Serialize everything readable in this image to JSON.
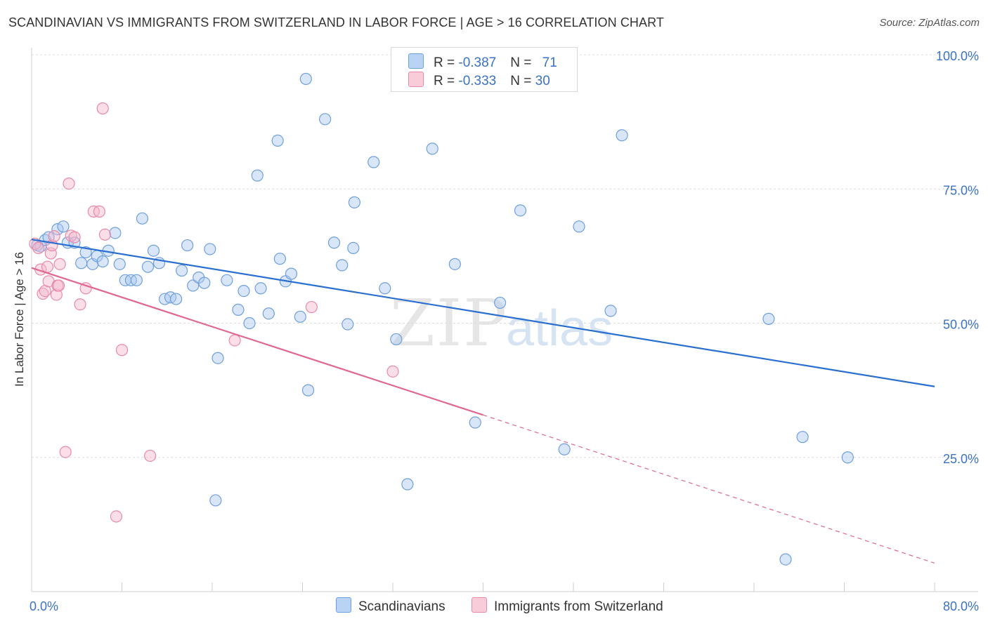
{
  "title": "SCANDINAVIAN VS IMMIGRANTS FROM SWITZERLAND IN LABOR FORCE | AGE > 16 CORRELATION CHART",
  "source": "Source: ZipAtlas.com",
  "watermark": "ZIPatlas",
  "colors": {
    "scandinavians": "#a8c8f0",
    "scandinavians_line": "#2a6fd0",
    "switzerland": "#f5b8cb",
    "switzerland_line": "#e06890",
    "axis_text": "#3a72c4"
  },
  "legend_top": {
    "rows": [
      {
        "r_label": "R = ",
        "r_value": "-0.387",
        "n_label": "N = ",
        "n_value": "71"
      },
      {
        "r_label": "R = ",
        "r_value": "-0.333",
        "n_label": "N = ",
        "n_value": "30"
      }
    ]
  },
  "legend_bottom": {
    "scandinavians": "Scandinavians",
    "switzerland": "Immigrants from Switzerland"
  },
  "chart_data": {
    "type": "scatter",
    "title": "SCANDINAVIAN VS IMMIGRANTS FROM SWITZERLAND IN LABOR FORCE | AGE > 16 CORRELATION CHART",
    "xlabel": "",
    "ylabel": "In Labor Force | Age > 16",
    "xlim": [
      0,
      80
    ],
    "ylim": [
      0,
      105
    ],
    "x_tick_labels": [
      "0.0%",
      "80.0%"
    ],
    "y_tick_labels": [
      "25.0%",
      "50.0%",
      "75.0%",
      "100.0%"
    ],
    "y_ticks": [
      25,
      50,
      75,
      100
    ],
    "grid": "horizontal dashed",
    "legend_position": "top-center",
    "series": [
      {
        "name": "Scandinavians",
        "points": [
          [
            0.5,
            64.5
          ],
          [
            0.8,
            64.3
          ],
          [
            1.2,
            65.5
          ],
          [
            1.5,
            66.0
          ],
          [
            2.3,
            67.5
          ],
          [
            2.8,
            68.0
          ],
          [
            3.2,
            65.0
          ],
          [
            3.8,
            65.0
          ],
          [
            4.4,
            61.2
          ],
          [
            4.8,
            63.2
          ],
          [
            5.4,
            61.0
          ],
          [
            5.8,
            62.5
          ],
          [
            6.3,
            61.5
          ],
          [
            6.8,
            63.5
          ],
          [
            7.4,
            66.8
          ],
          [
            7.8,
            61.0
          ],
          [
            8.3,
            58.0
          ],
          [
            8.8,
            58.0
          ],
          [
            9.3,
            58.0
          ],
          [
            9.8,
            69.5
          ],
          [
            10.3,
            60.5
          ],
          [
            10.8,
            63.5
          ],
          [
            11.3,
            61.2
          ],
          [
            11.8,
            54.5
          ],
          [
            12.3,
            54.8
          ],
          [
            12.8,
            54.5
          ],
          [
            13.3,
            59.8
          ],
          [
            13.8,
            64.5
          ],
          [
            14.3,
            57.0
          ],
          [
            14.8,
            58.5
          ],
          [
            15.3,
            57.5
          ],
          [
            15.8,
            63.8
          ],
          [
            16.5,
            43.5
          ],
          [
            17.3,
            58.0
          ],
          [
            18.3,
            52.5
          ],
          [
            18.8,
            56.0
          ],
          [
            19.3,
            50.0
          ],
          [
            20.0,
            77.5
          ],
          [
            20.3,
            56.5
          ],
          [
            21.0,
            51.8
          ],
          [
            21.8,
            84.0
          ],
          [
            22.0,
            62.0
          ],
          [
            22.5,
            57.8
          ],
          [
            23.0,
            59.2
          ],
          [
            23.8,
            51.2
          ],
          [
            24.3,
            95.5
          ],
          [
            24.5,
            37.5
          ],
          [
            26.0,
            88.0
          ],
          [
            26.8,
            65.0
          ],
          [
            27.5,
            60.8
          ],
          [
            28.0,
            49.8
          ],
          [
            28.5,
            64.0
          ],
          [
            28.6,
            72.5
          ],
          [
            30.3,
            80.0
          ],
          [
            31.3,
            56.5
          ],
          [
            32.3,
            47.0
          ],
          [
            33.3,
            20.0
          ],
          [
            35.5,
            82.5
          ],
          [
            37.5,
            61.0
          ],
          [
            39.3,
            31.5
          ],
          [
            41.5,
            53.8
          ],
          [
            43.3,
            71.0
          ],
          [
            47.2,
            26.5
          ],
          [
            48.5,
            68.0
          ],
          [
            51.3,
            52.3
          ],
          [
            52.3,
            85.0
          ],
          [
            16.3,
            17.0
          ],
          [
            65.3,
            50.8
          ],
          [
            66.8,
            6.0
          ],
          [
            68.3,
            28.8
          ],
          [
            72.3,
            25.0
          ]
        ]
      },
      {
        "name": "Immigrants from Switzerland",
        "points": [
          [
            0.3,
            64.8
          ],
          [
            0.6,
            64.0
          ],
          [
            0.8,
            60.0
          ],
          [
            1.0,
            55.5
          ],
          [
            1.2,
            56.0
          ],
          [
            1.4,
            60.5
          ],
          [
            1.5,
            57.8
          ],
          [
            1.7,
            63.0
          ],
          [
            1.8,
            64.5
          ],
          [
            2.0,
            66.2
          ],
          [
            2.2,
            55.3
          ],
          [
            2.3,
            57.0
          ],
          [
            2.4,
            57.0
          ],
          [
            2.5,
            61.0
          ],
          [
            3.0,
            26.0
          ],
          [
            3.3,
            76.0
          ],
          [
            3.5,
            66.3
          ],
          [
            3.8,
            66.0
          ],
          [
            4.3,
            53.5
          ],
          [
            4.8,
            56.5
          ],
          [
            5.5,
            70.8
          ],
          [
            6.0,
            70.8
          ],
          [
            6.3,
            90.0
          ],
          [
            6.5,
            66.5
          ],
          [
            7.5,
            14.0
          ],
          [
            8.0,
            45.0
          ],
          [
            10.5,
            25.3
          ],
          [
            18.0,
            46.8
          ],
          [
            24.8,
            53.0
          ],
          [
            32.0,
            41.0
          ]
        ]
      }
    ],
    "trend_lines": [
      {
        "series": "Scandinavians",
        "x": [
          0,
          80
        ],
        "y": [
          65.6,
          38.2
        ]
      },
      {
        "series": "Immigrants from Switzerland",
        "x": [
          0,
          40
        ],
        "y": [
          60.3,
          32.9
        ],
        "extended_dashed_to": [
          80,
          5.3
        ]
      }
    ]
  }
}
